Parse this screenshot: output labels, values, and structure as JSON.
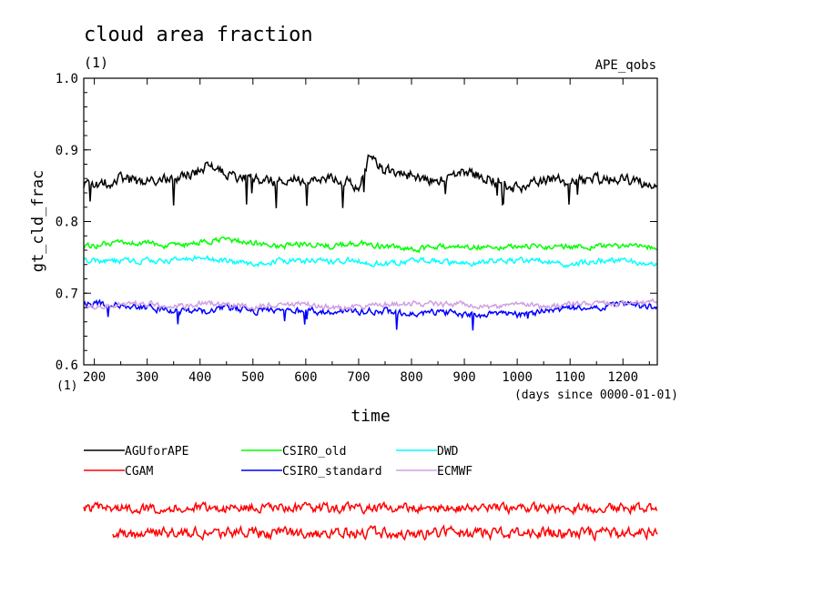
{
  "chart_data": {
    "type": "line",
    "title": "cloud area fraction",
    "subtitle": "(1)",
    "experiment": "APE_qobs",
    "xlabel": "time",
    "x_units": "(days since 0000-01-01)",
    "ylabel": "gt_cld_frac",
    "y_units": "(1)",
    "xlim": [
      180,
      1265
    ],
    "ylim": [
      0.6,
      1.0
    ],
    "x_ticks": [
      200,
      300,
      400,
      500,
      600,
      700,
      800,
      900,
      1000,
      1100,
      1200
    ],
    "y_ticks": [
      0.6,
      0.7,
      0.8,
      0.9,
      1.0
    ],
    "x_tick_labels": [
      "200",
      "300",
      "400",
      "500",
      "600",
      "700",
      "800",
      "900",
      "1000",
      "1100",
      "1200"
    ],
    "y_tick_labels": [
      "0.6",
      "0.7",
      "0.8",
      "0.9",
      "1.0"
    ],
    "grid": false,
    "legend_position": "bottom",
    "series": [
      {
        "name": "AGUforAPE",
        "color": "#000000",
        "x": [
          180,
          200,
          250,
          300,
          350,
          400,
          420,
          450,
          500,
          550,
          600,
          650,
          700,
          720,
          750,
          800,
          850,
          900,
          950,
          1000,
          1050,
          1100,
          1150,
          1200,
          1265
        ],
        "y": [
          0.85,
          0.85,
          0.86,
          0.855,
          0.86,
          0.87,
          0.88,
          0.865,
          0.86,
          0.855,
          0.86,
          0.86,
          0.85,
          0.89,
          0.87,
          0.865,
          0.855,
          0.87,
          0.86,
          0.845,
          0.86,
          0.855,
          0.86,
          0.86,
          0.85
        ]
      },
      {
        "name": "CGAM",
        "color": "#ff0000",
        "x": [
          180,
          300,
          400,
          500,
          600,
          700,
          800,
          900,
          1000,
          1100,
          1200,
          1265
        ],
        "y": [
          0.4,
          0.4,
          0.4,
          0.4,
          0.4,
          0.4,
          0.4,
          0.4,
          0.4,
          0.4,
          0.4,
          0.4
        ]
      },
      {
        "name": "CSIRO_old",
        "color": "#00ff00",
        "x": [
          180,
          250,
          300,
          350,
          400,
          450,
          500,
          550,
          600,
          650,
          700,
          750,
          800,
          850,
          900,
          950,
          1000,
          1050,
          1100,
          1150,
          1200,
          1265
        ],
        "y": [
          0.765,
          0.77,
          0.77,
          0.765,
          0.77,
          0.775,
          0.77,
          0.765,
          0.77,
          0.765,
          0.77,
          0.765,
          0.76,
          0.765,
          0.765,
          0.765,
          0.765,
          0.765,
          0.765,
          0.765,
          0.765,
          0.765
        ]
      },
      {
        "name": "CSIRO_standard",
        "color": "#0000ff",
        "x": [
          180,
          250,
          300,
          350,
          400,
          450,
          500,
          550,
          600,
          650,
          700,
          750,
          800,
          850,
          900,
          950,
          1000,
          1050,
          1100,
          1150,
          1200,
          1265
        ],
        "y": [
          0.685,
          0.685,
          0.68,
          0.675,
          0.675,
          0.68,
          0.675,
          0.675,
          0.675,
          0.675,
          0.675,
          0.675,
          0.67,
          0.675,
          0.67,
          0.67,
          0.67,
          0.675,
          0.68,
          0.68,
          0.685,
          0.68
        ]
      },
      {
        "name": "DWD",
        "color": "#00ffff",
        "x": [
          180,
          250,
          300,
          350,
          400,
          450,
          500,
          550,
          600,
          650,
          700,
          750,
          800,
          850,
          900,
          950,
          1000,
          1050,
          1100,
          1150,
          1200,
          1265
        ],
        "y": [
          0.745,
          0.745,
          0.745,
          0.745,
          0.75,
          0.745,
          0.74,
          0.745,
          0.745,
          0.745,
          0.745,
          0.74,
          0.745,
          0.745,
          0.74,
          0.745,
          0.745,
          0.745,
          0.74,
          0.745,
          0.745,
          0.74
        ]
      },
      {
        "name": "ECMWF",
        "color": "#d0a0e0",
        "x": [
          180,
          250,
          300,
          350,
          400,
          450,
          500,
          550,
          600,
          650,
          700,
          750,
          800,
          850,
          900,
          950,
          1000,
          1050,
          1100,
          1150,
          1200,
          1265
        ],
        "y": [
          0.68,
          0.685,
          0.685,
          0.68,
          0.685,
          0.685,
          0.68,
          0.685,
          0.685,
          0.68,
          0.68,
          0.685,
          0.685,
          0.685,
          0.685,
          0.68,
          0.685,
          0.68,
          0.685,
          0.685,
          0.685,
          0.69
        ]
      }
    ]
  }
}
